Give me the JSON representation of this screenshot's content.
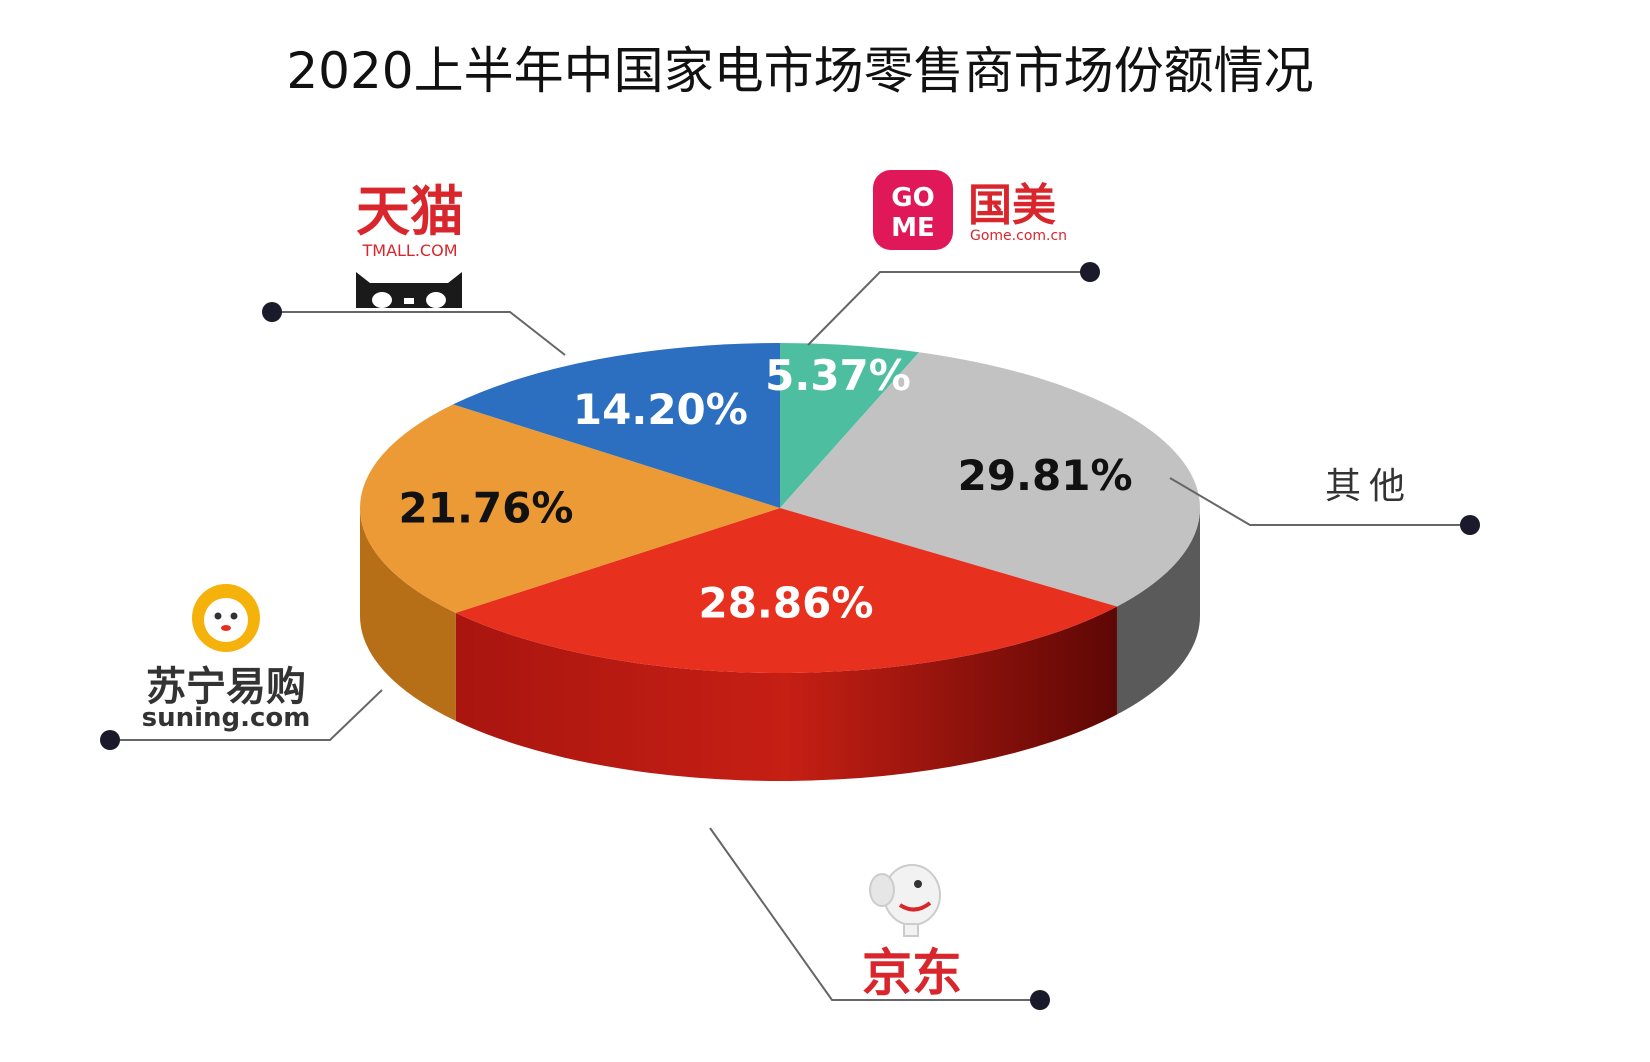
{
  "chart_data": {
    "type": "pie",
    "title": "2020上半年中国家电市场零售商市场份额情况",
    "slices": [
      {
        "name": "国美",
        "value": 5.37,
        "label": "5.37%",
        "color": "#4dbfa0",
        "side_color": "#2f8f76",
        "label_color": "#ffffff",
        "brand_sub": "Gome.com.cn",
        "badge_line1": "GO",
        "badge_line2": "ME"
      },
      {
        "name": "其他",
        "value": 29.81,
        "label": "29.81%",
        "color": "#c2c2c2",
        "side_color": "#5a5a5a",
        "label_color": "#111111"
      },
      {
        "name": "京东",
        "value": 28.86,
        "label": "28.86%",
        "color": "#e8301f",
        "side_color": "#8c120c",
        "label_color": "#ffffff"
      },
      {
        "name": "苏宁易购",
        "value": 21.76,
        "label": "21.76%",
        "color": "#eb9a36",
        "side_color": "#b66f17",
        "label_color": "#111111",
        "brand_sub": "suning.com"
      },
      {
        "name": "天猫",
        "value": 14.2,
        "label": "14.20%",
        "color": "#2c6fc0",
        "side_color": "#1b4a86",
        "label_color": "#ffffff",
        "brand_sub": "TMALL.COM"
      }
    ]
  }
}
